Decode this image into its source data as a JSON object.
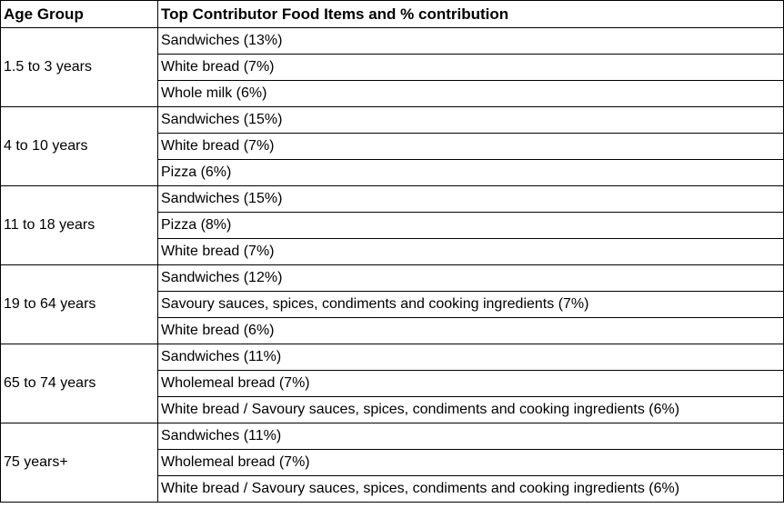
{
  "table": {
    "headers": {
      "age_group": "Age Group",
      "contributors": "Top Contributor Food Items and % contribution"
    },
    "groups": [
      {
        "age": "1.5 to 3 years",
        "items": [
          "Sandwiches (13%)",
          "White bread (7%)",
          "Whole milk (6%)"
        ]
      },
      {
        "age": "4 to 10 years",
        "items": [
          "Sandwiches (15%)",
          "White bread (7%)",
          "Pizza (6%)"
        ]
      },
      {
        "age": "11 to 18 years",
        "items": [
          "Sandwiches (15%)",
          "Pizza (8%)",
          "White bread (7%)"
        ]
      },
      {
        "age": "19 to 64 years",
        "items": [
          "Sandwiches (12%)",
          "Savoury sauces, spices, condiments and cooking ingredients (7%)",
          "White bread (6%)"
        ]
      },
      {
        "age": "65 to 74 years",
        "items": [
          "Sandwiches (11%)",
          "Wholemeal bread (7%)",
          "White bread / Savoury sauces, spices, condiments and cooking ingredients (6%)"
        ]
      },
      {
        "age": "75 years+",
        "items": [
          "Sandwiches (11%)",
          "Wholemeal bread (7%)",
          "White bread / Savoury sauces, spices, condiments and cooking ingredients (6%)"
        ]
      }
    ]
  }
}
